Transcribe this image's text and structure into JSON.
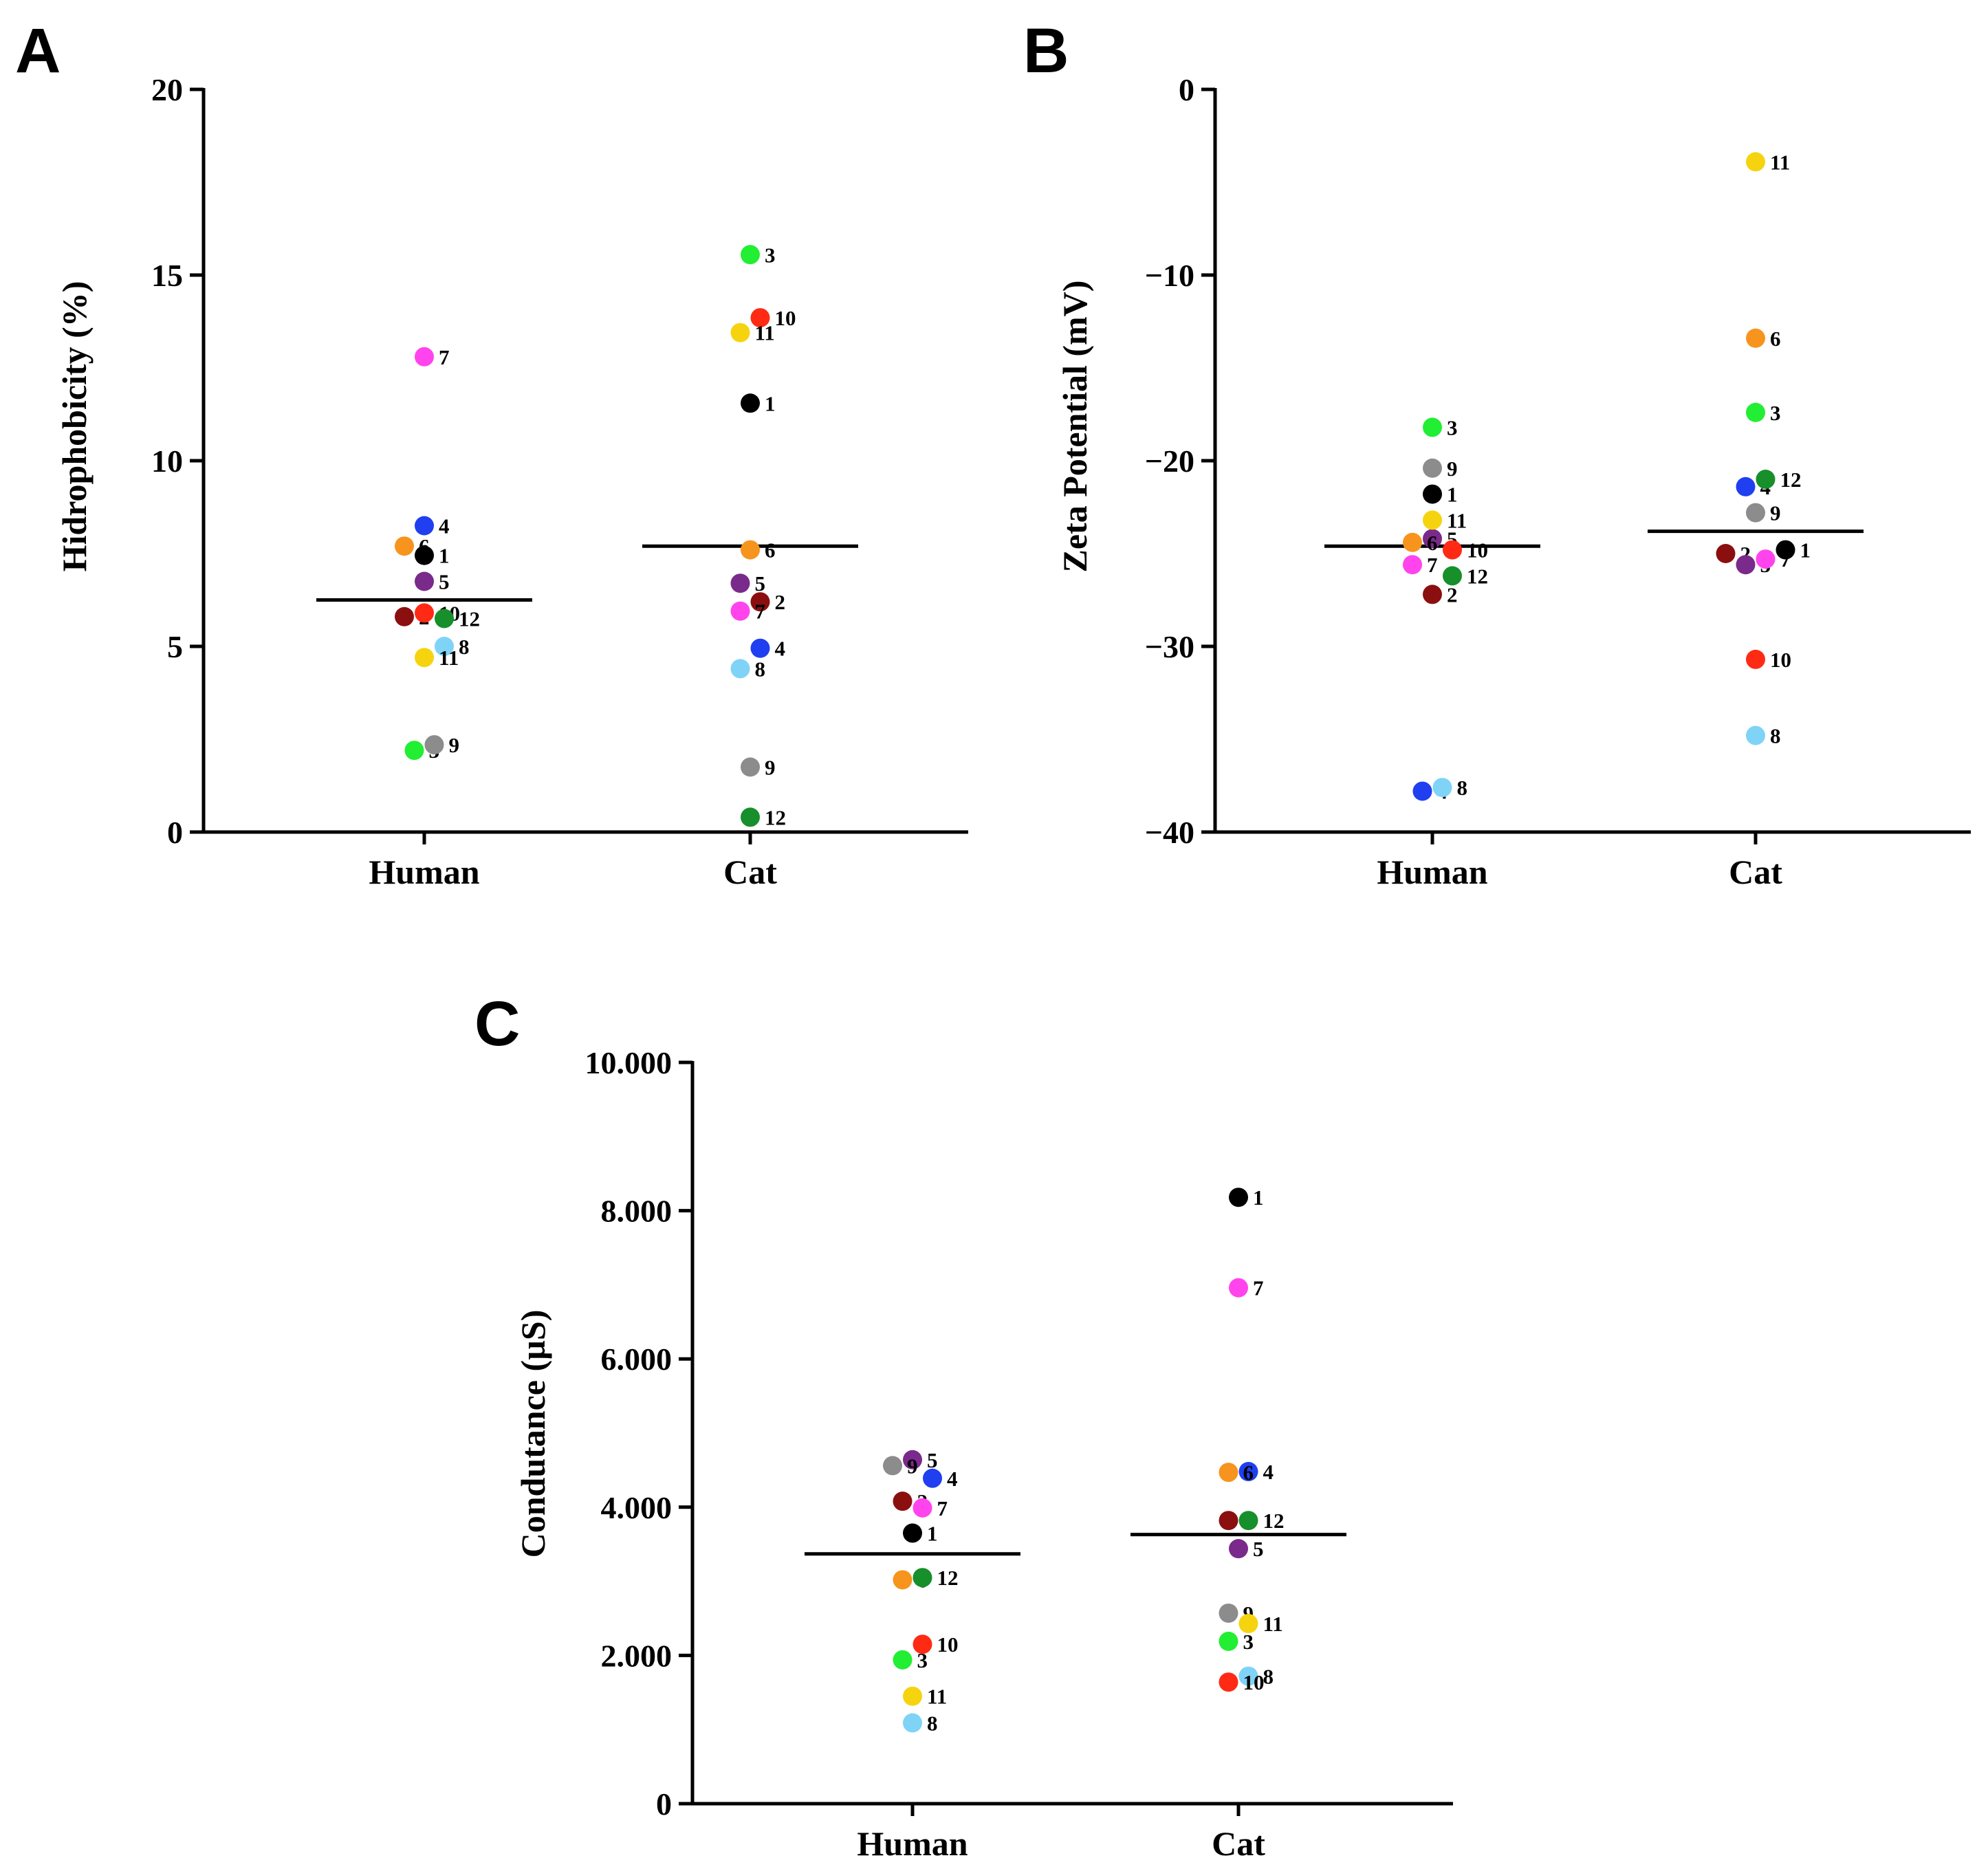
{
  "colors": {
    "1": "#000000",
    "2": "#8b0f0f",
    "3": "#22ee33",
    "4": "#1f3ff0",
    "5": "#7a2a8a",
    "6": "#f7941d",
    "7": "#ff44ee",
    "8": "#7fd3f7",
    "9": "#8c8c8c",
    "10": "#ff2a14",
    "11": "#f5d40f",
    "12": "#178f2a"
  },
  "chart_data": [
    {
      "panel": "A",
      "type": "scatter",
      "ylabel": "Hidrophobicity (%)",
      "ylim": [
        0,
        20
      ],
      "yticks": [
        0,
        5,
        10,
        15,
        20
      ],
      "tick_labels": [
        "0",
        "5",
        "10",
        "15",
        "20"
      ],
      "categories": [
        "Human",
        "Cat"
      ],
      "means": [
        6.25,
        7.7
      ],
      "series": [
        {
          "name": "Human",
          "points": [
            {
              "id": "1",
              "value": 7.45,
              "off": 0
            },
            {
              "id": "2",
              "value": 5.8,
              "off": -1
            },
            {
              "id": "3",
              "value": 2.2,
              "off": -0.5
            },
            {
              "id": "4",
              "value": 8.25,
              "off": 0
            },
            {
              "id": "5",
              "value": 6.75,
              "off": 0
            },
            {
              "id": "6",
              "value": 7.7,
              "off": -1
            },
            {
              "id": "7",
              "value": 12.8,
              "off": 0
            },
            {
              "id": "8",
              "value": 5.0,
              "off": 1
            },
            {
              "id": "9",
              "value": 2.35,
              "off": 0.5
            },
            {
              "id": "10",
              "value": 5.9,
              "off": 0
            },
            {
              "id": "11",
              "value": 4.7,
              "off": 0
            },
            {
              "id": "12",
              "value": 5.75,
              "off": 1
            }
          ]
        },
        {
          "name": "Cat",
          "points": [
            {
              "id": "1",
              "value": 11.55,
              "off": 0
            },
            {
              "id": "2",
              "value": 6.2,
              "off": 0.5
            },
            {
              "id": "3",
              "value": 15.55,
              "off": 0
            },
            {
              "id": "4",
              "value": 4.95,
              "off": 0.5
            },
            {
              "id": "5",
              "value": 6.7,
              "off": -0.5
            },
            {
              "id": "6",
              "value": 7.6,
              "off": 0
            },
            {
              "id": "7",
              "value": 5.95,
              "off": -0.5
            },
            {
              "id": "8",
              "value": 4.4,
              "off": -0.5
            },
            {
              "id": "9",
              "value": 1.75,
              "off": 0
            },
            {
              "id": "10",
              "value": 13.85,
              "off": 0.5
            },
            {
              "id": "11",
              "value": 13.45,
              "off": -0.5
            },
            {
              "id": "12",
              "value": 0.4,
              "off": 0
            }
          ]
        }
      ]
    },
    {
      "panel": "B",
      "type": "scatter",
      "ylabel": "Zeta Potential (mV)",
      "ylim": [
        -40,
        0
      ],
      "yticks": [
        0,
        -10,
        -20,
        -30,
        -40
      ],
      "tick_labels": [
        "0",
        "−10",
        "−20",
        "−30",
        "−40"
      ],
      "categories": [
        "Human",
        "Cat"
      ],
      "means": [
        -24.6,
        -23.8
      ],
      "series": [
        {
          "name": "Human",
          "points": [
            {
              "id": "1",
              "value": -21.8,
              "off": 0
            },
            {
              "id": "2",
              "value": -27.2,
              "off": 0
            },
            {
              "id": "3",
              "value": -18.2,
              "off": 0
            },
            {
              "id": "4",
              "value": -37.8,
              "off": -0.5
            },
            {
              "id": "5",
              "value": -24.2,
              "off": 0
            },
            {
              "id": "6",
              "value": -24.4,
              "off": -1
            },
            {
              "id": "7",
              "value": -25.6,
              "off": -1
            },
            {
              "id": "8",
              "value": -37.6,
              "off": 0.5
            },
            {
              "id": "9",
              "value": -20.4,
              "off": 0
            },
            {
              "id": "10",
              "value": -24.8,
              "off": 1
            },
            {
              "id": "11",
              "value": -23.2,
              "off": 0
            },
            {
              "id": "12",
              "value": -26.2,
              "off": 1
            }
          ]
        },
        {
          "name": "Cat",
          "points": [
            {
              "id": "1",
              "value": -24.8,
              "off": 1.5
            },
            {
              "id": "2",
              "value": -25.0,
              "off": -1.5
            },
            {
              "id": "3",
              "value": -17.4,
              "off": 0
            },
            {
              "id": "4",
              "value": -21.4,
              "off": -0.5
            },
            {
              "id": "5",
              "value": -25.6,
              "off": -0.5
            },
            {
              "id": "6",
              "value": -13.4,
              "off": 0
            },
            {
              "id": "7",
              "value": -25.3,
              "off": 0.5
            },
            {
              "id": "8",
              "value": -34.8,
              "off": 0
            },
            {
              "id": "9",
              "value": -22.8,
              "off": 0
            },
            {
              "id": "10",
              "value": -30.7,
              "off": 0
            },
            {
              "id": "11",
              "value": -3.9,
              "off": 0
            },
            {
              "id": "12",
              "value": -21.0,
              "off": 0.5
            }
          ]
        }
      ]
    },
    {
      "panel": "C",
      "type": "scatter",
      "ylabel": "Condutance (µS)",
      "ylim": [
        0,
        10000
      ],
      "yticks": [
        0,
        2000,
        4000,
        6000,
        8000,
        10000
      ],
      "tick_labels": [
        "0",
        "2.000",
        "4.000",
        "6.000",
        "8.000",
        "10.000"
      ],
      "categories": [
        "Human",
        "Cat"
      ],
      "means": [
        3370,
        3630
      ],
      "series": [
        {
          "name": "Human",
          "points": [
            {
              "id": "1",
              "value": 3650,
              "off": 0
            },
            {
              "id": "2",
              "value": 4080,
              "off": -0.5
            },
            {
              "id": "3",
              "value": 1940,
              "off": -0.5
            },
            {
              "id": "4",
              "value": 4390,
              "off": 1
            },
            {
              "id": "5",
              "value": 4640,
              "off": 0
            },
            {
              "id": "6",
              "value": 3020,
              "off": -0.5
            },
            {
              "id": "7",
              "value": 3990,
              "off": 0.5
            },
            {
              "id": "8",
              "value": 1090,
              "off": 0
            },
            {
              "id": "9",
              "value": 4560,
              "off": -1
            },
            {
              "id": "10",
              "value": 2150,
              "off": 0.5
            },
            {
              "id": "11",
              "value": 1450,
              "off": 0
            },
            {
              "id": "12",
              "value": 3050,
              "off": 0.5
            }
          ]
        },
        {
          "name": "Cat",
          "points": [
            {
              "id": "1",
              "value": 8180,
              "off": 0
            },
            {
              "id": "2",
              "value": 3820,
              "off": -0.5
            },
            {
              "id": "3",
              "value": 2190,
              "off": -0.5
            },
            {
              "id": "4",
              "value": 4480,
              "off": 0.5
            },
            {
              "id": "5",
              "value": 3440,
              "off": 0
            },
            {
              "id": "6",
              "value": 4470,
              "off": -0.5
            },
            {
              "id": "7",
              "value": 6960,
              "off": 0
            },
            {
              "id": "8",
              "value": 1720,
              "off": 0.5
            },
            {
              "id": "9",
              "value": 2570,
              "off": -0.5
            },
            {
              "id": "10",
              "value": 1640,
              "off": -0.5
            },
            {
              "id": "11",
              "value": 2430,
              "off": 0.5
            },
            {
              "id": "12",
              "value": 3820,
              "off": 0.5
            }
          ]
        }
      ]
    }
  ]
}
